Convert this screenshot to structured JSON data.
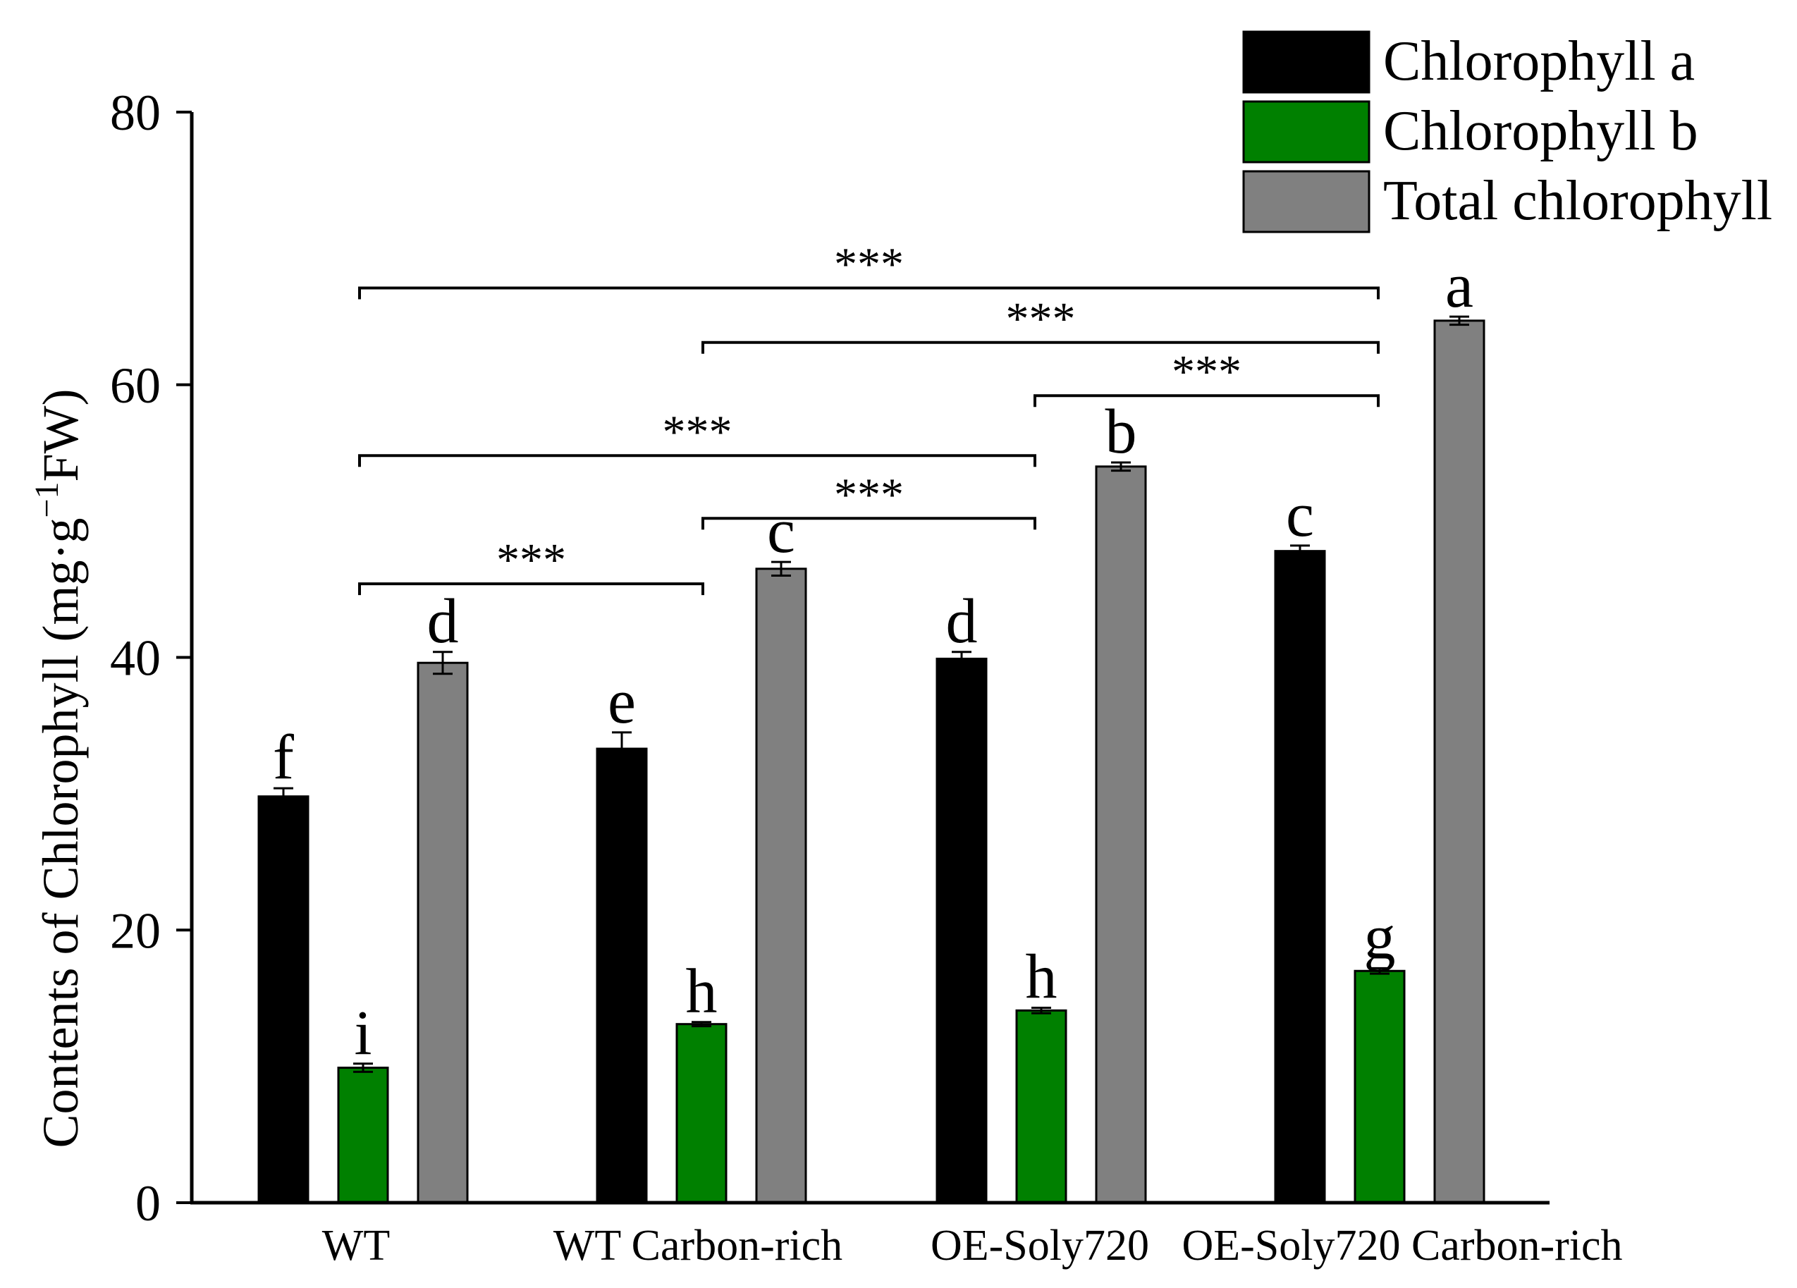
{
  "chart_data": {
    "type": "bar",
    "ylabel_main": "Contents of Chlorophyll (mg·g",
    "ylabel_sup": "−1",
    "ylabel_tail": "FW)",
    "ylim": [
      0,
      80
    ],
    "yticks": [
      "0",
      "20",
      "40",
      "60",
      "80"
    ],
    "categories": [
      "WT",
      "WT Carbon-rich",
      "OE-Soly720",
      "OE-Soly720 Carbon-rich"
    ],
    "series": [
      {
        "name": "Chlorophyll a",
        "color": "#000000",
        "values": [
          29.8,
          33.3,
          39.9,
          47.8
        ],
        "errors": [
          0.6,
          1.2,
          0.5,
          0.4
        ],
        "letters": [
          "f",
          "e",
          "d",
          "c"
        ]
      },
      {
        "name": "Chlorophyll b",
        "color": "#008000",
        "values": [
          9.9,
          13.1,
          14.1,
          17.0
        ],
        "errors": [
          0.3,
          0.15,
          0.2,
          0.2
        ],
        "letters": [
          "i",
          "h",
          "h",
          "g"
        ]
      },
      {
        "name": "Total chlorophyll",
        "color": "#808080",
        "values": [
          39.6,
          46.5,
          54.0,
          64.7
        ],
        "errors": [
          0.8,
          0.5,
          0.3,
          0.3
        ],
        "letters": [
          "d",
          "c",
          "b",
          "a"
        ]
      }
    ],
    "significance": [
      {
        "from": 0,
        "to": 1,
        "y": 45.4,
        "label": "***"
      },
      {
        "from": 1,
        "to": 2,
        "y": 50.2,
        "label": "***"
      },
      {
        "from": 0,
        "to": 2,
        "y": 54.8,
        "label": "***"
      },
      {
        "from": 2,
        "to": 3,
        "y": 59.2,
        "label": "***"
      },
      {
        "from": 1,
        "to": 3,
        "y": 63.1,
        "label": "***"
      },
      {
        "from": 0,
        "to": 3,
        "y": 67.1,
        "label": "***"
      }
    ],
    "legend_position": "top-right"
  }
}
